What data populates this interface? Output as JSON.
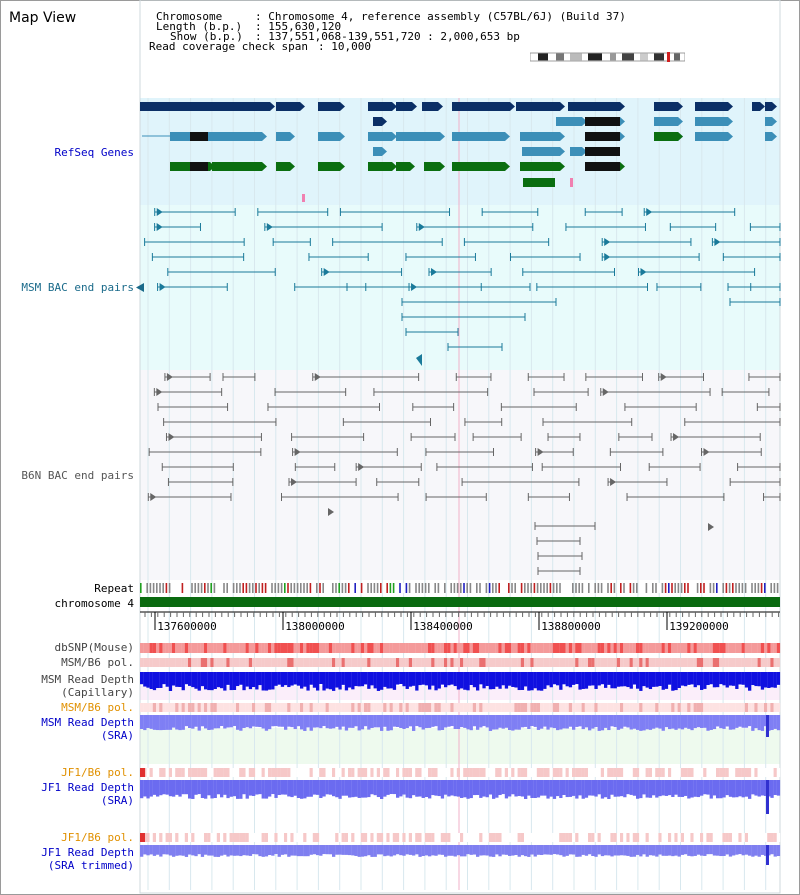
{
  "view_title": "Map View",
  "info": {
    "chromosome_label": "Chromosome",
    "chromosome_value": ": Chromosome 4, reference assembly (C57BL/6J) (Build 37)",
    "length_label": "Length (b.p.)",
    "length_value": ": 155,630,120",
    "show_label": "Show (b.p.)",
    "show_value": ": 137,551,068-139,551,720 : 2,000,653 bp",
    "coverage_label": "Read coverage check span",
    "coverage_value": ": 10,000"
  },
  "tracks": {
    "refseq": "RefSeq Genes",
    "msm_bac": "MSM BAC end pairs",
    "b6n_bac": "B6N BAC end pairs",
    "repeat": "Repeat",
    "chromosome": "chromosome 4",
    "dbsnp": "dbSNP(Mouse)",
    "msm_b6_pol_1": "MSM/B6 pol.",
    "msm_depth_cap_1": "MSM Read Depth",
    "msm_depth_cap_2": "(Capillary)",
    "msm_b6_pol_2": "MSM/B6 pol.",
    "msm_depth_sra_1": "MSM Read Depth",
    "msm_depth_sra_2": "(SRA)",
    "jf1_b6_pol_1": "JF1/B6 pol.",
    "jf1_depth_sra_1": "JF1 Read Depth",
    "jf1_depth_sra_2": "(SRA)",
    "jf1_b6_pol_2": "JF1/B6 pol.",
    "jf1_depth_trim_1": "JF1 Read Depth",
    "jf1_depth_trim_2": "(SRA trimmed)"
  },
  "axis_ticks": [
    "137600000",
    "138000000",
    "138400000",
    "138800000",
    "139200000"
  ],
  "colors": {
    "refseq_bg": "#e0f4fb",
    "bac_bg": "#e8fbfb",
    "gene_dark": "#0b2f66",
    "gene_mid": "#3c8fb8",
    "gene_green": "#0a6e10",
    "bac_msm": "#1a7a9a",
    "bac_b6n": "#666666",
    "chromosome_bar": "#0a6a10",
    "title_blue": "#0000c8",
    "title_orange": "#e09000"
  }
}
